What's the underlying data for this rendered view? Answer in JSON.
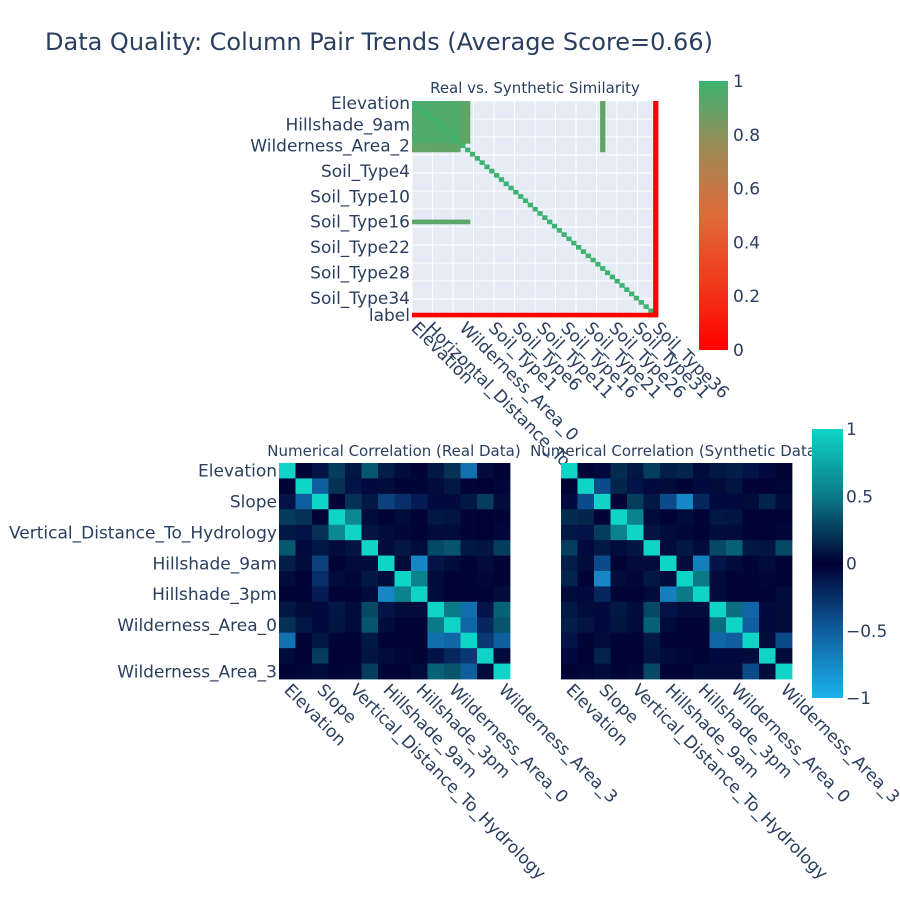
{
  "figure": {
    "title": "Data Quality: Column Pair Trends (Average Score=0.66)"
  },
  "colors": {
    "plot_bg": "#e5ecf6",
    "grid": "#ffffff",
    "text": "#2a3f5f",
    "sim_low": "#ff0000",
    "sim_high": "#3cb371",
    "corr_neg": "#1ab2ec",
    "corr_mid": "#000033",
    "corr_pos": "#10d4c8"
  },
  "chart_data": [
    {
      "type": "heatmap",
      "title": "Real vs. Synthetic Similarity",
      "zmin": 0,
      "zmax": 1,
      "colorbar_ticks": [
        "0",
        "0.2",
        "0.4",
        "0.6",
        "0.8",
        "1"
      ],
      "y_tick_labels": [
        "Elevation",
        "Hillshade_9am",
        "Wilderness_Area_2",
        "Soil_Type4",
        "Soil_Type10",
        "Soil_Type16",
        "Soil_Type22",
        "Soil_Type28",
        "Soil_Type34",
        "label"
      ],
      "x_tick_labels": [
        "Elevation",
        "Horizontal_Distance_To",
        "Wilderness_Area_0",
        "Soil_Type1",
        "Soil_Type6",
        "Soil_Type11",
        "Soil_Type16",
        "Soil_Type21",
        "Soil_Type26",
        "Soil_Type31",
        "Soil_Type36"
      ],
      "n": 51,
      "label_rows": [
        0,
        5,
        10,
        16,
        22,
        28,
        34,
        40,
        46,
        50
      ],
      "label_cols": [
        0,
        3,
        10,
        16,
        21,
        26,
        31,
        36,
        41,
        46,
        50
      ],
      "structure": {
        "dense_block_size": 10,
        "dense_value": 0.95,
        "partial_cols": [
          10,
          11
        ],
        "partial_value": 0.9,
        "isolated_col": 39,
        "isolated_rows": [
          0,
          1,
          2,
          3,
          4,
          5,
          6,
          7,
          8,
          9,
          10,
          11
        ],
        "row_28_value": 0.92,
        "diagonal_value": 1.0,
        "label_value": 0.0,
        "off_value": 0.05
      }
    },
    {
      "type": "heatmap",
      "title": "Numerical Correlation (Real Data)",
      "zmin": -1,
      "zmax": 1,
      "y_tick_labels": [
        "Elevation",
        "Slope",
        "Vertical_Distance_To_Hydrology",
        "Hillshade_9am",
        "Hillshade_3pm",
        "Wilderness_Area_0",
        "Wilderness_Area_3"
      ],
      "x_tick_labels": [
        "Elevation",
        "Slope",
        "Vertical_Distance_To_Hydrology",
        "Hillshade_9am",
        "Hillshade_3pm",
        "Wilderness_Area_0",
        "Wilderness_Area_3"
      ],
      "label_index": [
        0,
        2,
        4,
        6,
        8,
        10,
        13
      ],
      "n": 14,
      "matrix": [
        [
          1.0,
          0.02,
          -0.1,
          0.24,
          0.1,
          0.36,
          0.12,
          0.05,
          0.02,
          0.1,
          0.2,
          -0.62,
          0.05,
          0.02
        ],
        [
          0.02,
          1.0,
          -0.5,
          0.2,
          -0.1,
          -0.05,
          0.05,
          0.02,
          -0.03,
          0.05,
          0.1,
          0.02,
          0.01,
          0.03
        ],
        [
          -0.1,
          -0.5,
          1.0,
          0.02,
          0.2,
          0.1,
          -0.35,
          -0.25,
          -0.15,
          -0.05,
          -0.05,
          0.1,
          0.25,
          0.05
        ],
        [
          0.24,
          0.2,
          0.02,
          1.0,
          0.58,
          0.05,
          0.02,
          0.05,
          0.02,
          0.1,
          0.08,
          0.02,
          0.01,
          0.02
        ],
        [
          0.1,
          -0.1,
          0.2,
          0.58,
          1.0,
          0.08,
          0.05,
          0.03,
          0.02,
          0.05,
          0.05,
          0.02,
          0.01,
          0.03
        ],
        [
          0.36,
          -0.05,
          0.1,
          0.05,
          0.08,
          1.0,
          0.05,
          0.1,
          0.05,
          0.3,
          0.35,
          0.1,
          0.08,
          0.25
        ],
        [
          0.12,
          0.05,
          -0.35,
          0.02,
          0.05,
          0.05,
          1.0,
          0.05,
          -0.75,
          -0.1,
          0.05,
          0.02,
          0.05,
          0.02
        ],
        [
          0.05,
          0.02,
          -0.25,
          0.05,
          0.03,
          0.1,
          0.05,
          1.0,
          0.55,
          0.05,
          0.02,
          0.02,
          0.03,
          0.02
        ],
        [
          0.02,
          -0.03,
          -0.15,
          0.02,
          0.02,
          0.05,
          -0.75,
          0.55,
          1.0,
          0.05,
          0.02,
          0.02,
          0.02,
          0.05
        ],
        [
          0.1,
          0.05,
          -0.05,
          0.1,
          0.05,
          0.3,
          -0.1,
          0.05,
          0.05,
          1.0,
          0.5,
          -0.6,
          -0.1,
          0.4
        ],
        [
          0.2,
          0.1,
          -0.05,
          0.08,
          0.05,
          0.35,
          0.05,
          0.02,
          0.02,
          0.5,
          1.0,
          -0.55,
          -0.2,
          0.35
        ],
        [
          -0.62,
          0.02,
          0.1,
          0.02,
          0.02,
          0.1,
          0.02,
          0.02,
          0.02,
          -0.6,
          -0.55,
          1.0,
          -0.3,
          -0.5
        ],
        [
          0.05,
          0.01,
          0.25,
          0.01,
          0.01,
          0.08,
          0.05,
          0.03,
          0.02,
          -0.1,
          -0.2,
          -0.3,
          1.0,
          0.05
        ],
        [
          0.02,
          0.03,
          0.05,
          0.02,
          0.03,
          0.25,
          0.02,
          0.02,
          0.05,
          0.4,
          0.35,
          -0.5,
          0.05,
          1.0
        ]
      ]
    },
    {
      "type": "heatmap",
      "title": "Numerical Correlation (Synthetic Data)",
      "zmin": -1,
      "zmax": 1,
      "colorbar_ticks": [
        "−1",
        "−0.5",
        "0",
        "0.5",
        "1"
      ],
      "x_tick_labels": [
        "Elevation",
        "Slope",
        "Vertical_Distance_To_Hydrology",
        "Hillshade_9am",
        "Hillshade_3pm",
        "Wilderness_Area_0",
        "Wilderness_Area_3"
      ],
      "label_index": [
        0,
        2,
        4,
        6,
        8,
        10,
        13
      ],
      "n": 14,
      "matrix": [
        [
          1.0,
          0.02,
          -0.05,
          0.18,
          0.1,
          0.25,
          0.12,
          0.15,
          0.05,
          0.1,
          0.12,
          -0.1,
          -0.05,
          0.02
        ],
        [
          0.02,
          1.0,
          -0.4,
          0.15,
          -0.1,
          -0.05,
          0.05,
          0.02,
          -0.05,
          0.05,
          0.08,
          0.02,
          0.01,
          0.03
        ],
        [
          -0.05,
          -0.4,
          1.0,
          0.02,
          0.25,
          0.1,
          -0.4,
          -0.75,
          -0.2,
          -0.05,
          -0.05,
          0.05,
          0.15,
          0.05
        ],
        [
          0.18,
          0.15,
          0.02,
          1.0,
          0.55,
          0.05,
          0.02,
          0.05,
          0.02,
          0.1,
          0.08,
          0.02,
          0.01,
          0.02
        ],
        [
          0.1,
          -0.1,
          0.25,
          0.55,
          1.0,
          0.08,
          0.05,
          0.03,
          0.02,
          0.05,
          0.05,
          0.02,
          0.01,
          0.03
        ],
        [
          0.25,
          -0.05,
          0.1,
          0.05,
          0.08,
          1.0,
          0.05,
          0.1,
          0.05,
          0.3,
          0.4,
          0.1,
          0.08,
          0.3
        ],
        [
          0.12,
          0.05,
          -0.4,
          0.02,
          0.05,
          0.05,
          1.0,
          0.05,
          -0.7,
          -0.1,
          0.05,
          0.02,
          0.05,
          0.02
        ],
        [
          0.15,
          0.02,
          -0.75,
          0.05,
          0.03,
          0.1,
          0.05,
          1.0,
          0.5,
          0.05,
          0.02,
          0.02,
          0.03,
          0.02
        ],
        [
          0.05,
          -0.05,
          -0.2,
          0.02,
          0.02,
          0.05,
          -0.7,
          0.5,
          1.0,
          0.05,
          0.02,
          0.02,
          0.02,
          0.05
        ],
        [
          0.1,
          0.05,
          -0.05,
          0.1,
          0.05,
          0.3,
          -0.1,
          0.05,
          0.05,
          1.0,
          0.45,
          -0.55,
          -0.05,
          0.05
        ],
        [
          0.12,
          0.08,
          -0.05,
          0.08,
          0.05,
          0.4,
          0.05,
          0.02,
          0.02,
          0.45,
          1.0,
          -0.5,
          -0.05,
          0.05
        ],
        [
          -0.1,
          0.02,
          0.05,
          0.02,
          0.02,
          0.1,
          0.02,
          0.02,
          0.02,
          -0.55,
          -0.5,
          1.0,
          0.05,
          -0.4
        ],
        [
          -0.05,
          0.01,
          0.15,
          0.01,
          0.01,
          0.08,
          0.05,
          0.03,
          0.02,
          -0.05,
          -0.05,
          0.05,
          1.0,
          0.05
        ],
        [
          0.02,
          0.03,
          0.05,
          0.02,
          0.03,
          0.3,
          0.02,
          0.02,
          0.05,
          0.05,
          0.05,
          -0.4,
          0.05,
          1.0
        ]
      ]
    }
  ]
}
